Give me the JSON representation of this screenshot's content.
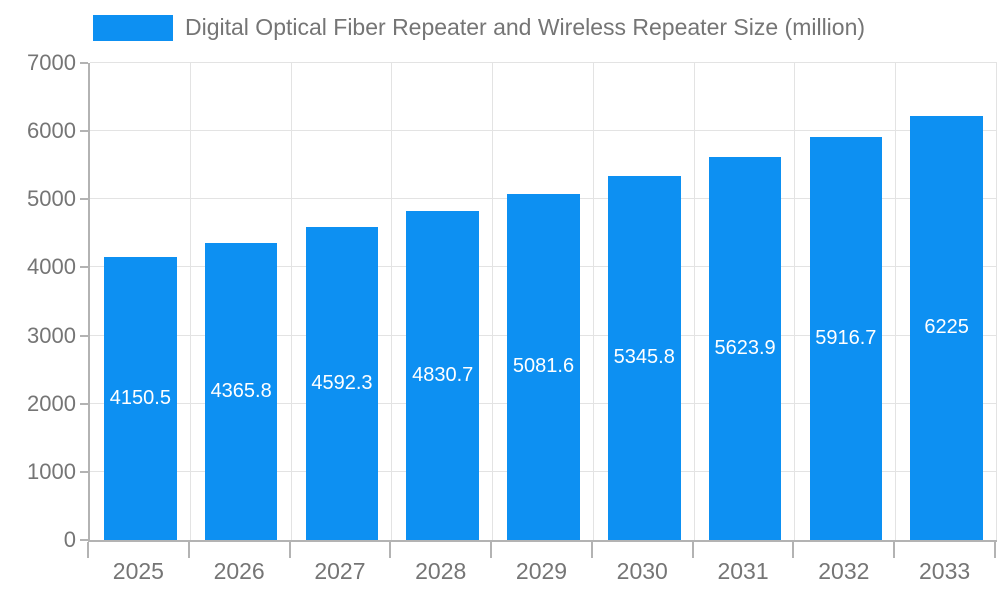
{
  "chart_data": {
    "type": "bar",
    "title": "Digital Optical Fiber Repeater and Wireless Repeater Size (million)",
    "categories": [
      "2025",
      "2026",
      "2027",
      "2028",
      "2029",
      "2030",
      "2031",
      "2032",
      "2033"
    ],
    "values": [
      4150.5,
      4365.8,
      4592.3,
      4830.7,
      5081.6,
      5345.8,
      5623.9,
      5916.7,
      6225
    ],
    "value_labels": [
      "4150.5",
      "4365.8",
      "4592.3",
      "4830.7",
      "5081.6",
      "5345.8",
      "5623.9",
      "5916.7",
      "6225"
    ],
    "xlabel": "",
    "ylabel": "",
    "ylim": [
      0,
      7000
    ],
    "ytick_step": 1000,
    "yticks": [
      "0",
      "1000",
      "2000",
      "3000",
      "4000",
      "5000",
      "6000",
      "7000"
    ],
    "grid": true,
    "legend_position": "top-left",
    "colors": {
      "bar": "#0d90f2",
      "bar_value_text": "#ffffff",
      "axis_text": "#757575",
      "axis_line": "#b3b3b3",
      "gridline": "#e3e3e3",
      "background": "#ffffff"
    }
  }
}
